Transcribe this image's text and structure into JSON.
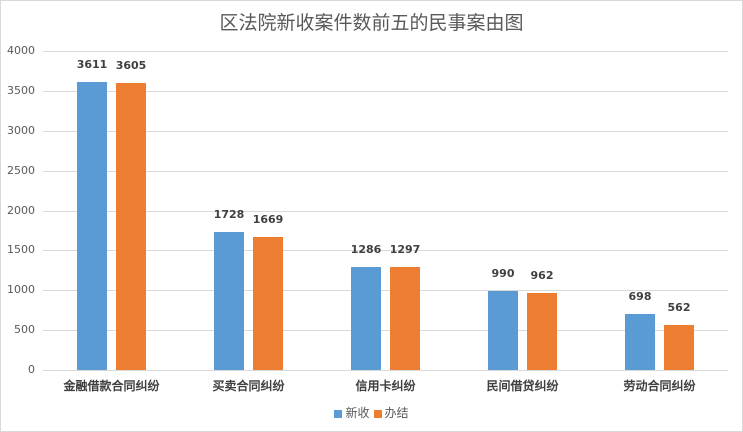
{
  "chart_data": {
    "type": "bar",
    "title": "区法院新收案件数前五的民事案由图",
    "categories": [
      "金融借款合同纠纷",
      "买卖合同纠纷",
      "信用卡纠纷",
      "民间借贷纠纷",
      "劳动合同纠纷"
    ],
    "series": [
      {
        "name": "新收",
        "color": "#5b9bd5",
        "values": [
          3611,
          1728,
          1286,
          990,
          698
        ]
      },
      {
        "name": "办结",
        "color": "#ed7d31",
        "values": [
          3605,
          1669,
          1297,
          962,
          562
        ]
      }
    ],
    "xlabel": "",
    "ylabel": "",
    "ylim": [
      0,
      4000
    ],
    "yticks": [
      0,
      500,
      1000,
      1500,
      2000,
      2500,
      3000,
      3500,
      4000
    ],
    "grid": true,
    "legend_position": "bottom",
    "data_labels": true
  }
}
